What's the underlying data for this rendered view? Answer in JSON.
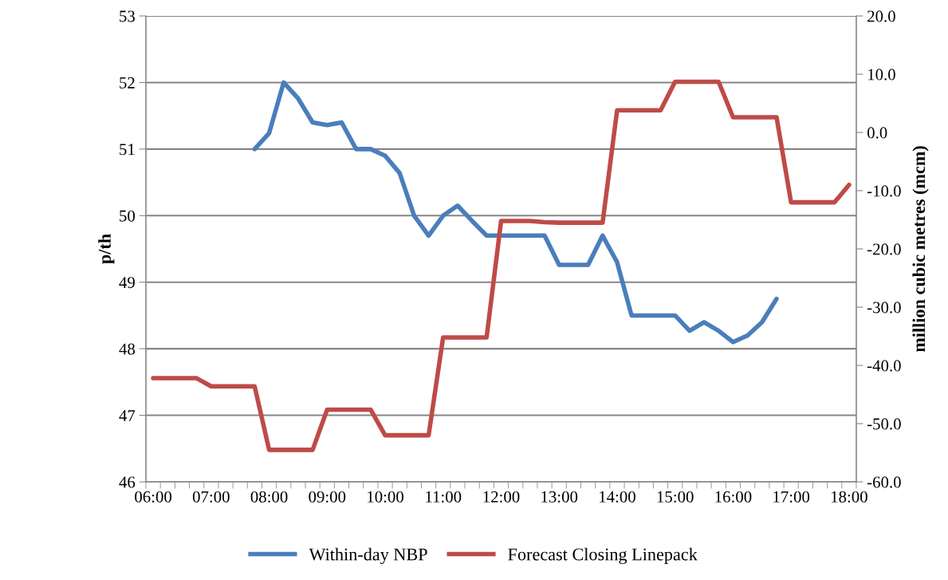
{
  "chart_data": {
    "type": "line",
    "categories": [
      "06:00",
      null,
      null,
      null,
      "07:00",
      null,
      null,
      null,
      "08:00",
      null,
      null,
      null,
      "09:00",
      null,
      null,
      null,
      "10:00",
      null,
      null,
      null,
      "11:00",
      null,
      null,
      null,
      "12:00",
      null,
      null,
      null,
      "13:00",
      null,
      null,
      null,
      "14:00",
      null,
      null,
      null,
      "15:00",
      null,
      null,
      null,
      "16:00",
      null,
      null,
      null,
      "17:00",
      null,
      null,
      null,
      "18:00"
    ],
    "ylabel": "p/th",
    "y2label": "million cubic metres (mcm)",
    "ylim": [
      46,
      53
    ],
    "yticks": [
      46,
      47,
      48,
      49,
      50,
      51,
      52,
      53
    ],
    "y2lim": [
      -60,
      20
    ],
    "y2ticks": [
      {
        "value": -60,
        "label": "-60.0"
      },
      {
        "value": -50,
        "label": "-50.0"
      },
      {
        "value": -40,
        "label": "-40.0"
      },
      {
        "value": -30,
        "label": "-30.0"
      },
      {
        "value": -20,
        "label": "-20.0"
      },
      {
        "value": -10,
        "label": "-10.0"
      },
      {
        "value": 0,
        "label": "0.0"
      },
      {
        "value": 10,
        "label": "10.0"
      },
      {
        "value": 20,
        "label": "20.0"
      }
    ],
    "grid": "y",
    "legend": "bottom",
    "marker": "none",
    "line_style": "solid",
    "series": [
      {
        "name": "Within-day NBP",
        "color": "#4a7ebb",
        "values": [
          null,
          null,
          null,
          null,
          null,
          null,
          null,
          51.0,
          51.24,
          52.0,
          51.76,
          51.4,
          51.36,
          51.4,
          51.0,
          51.0,
          50.9,
          50.64,
          50.0,
          49.7,
          50.0,
          50.15,
          49.92,
          49.7,
          49.7,
          49.7,
          49.7,
          49.7,
          49.26,
          49.26,
          49.26,
          49.7,
          49.3,
          48.5,
          48.5,
          48.5,
          48.5,
          48.27,
          48.4,
          48.27,
          48.1,
          48.2,
          48.4,
          48.75,
          null,
          null,
          null,
          null,
          null
        ]
      },
      {
        "name": "Forecast Closing Linepack",
        "color": "#be4b48",
        "axis": "y2",
        "values": [
          -42.2,
          -42.2,
          -42.2,
          -42.2,
          -43.6,
          -43.6,
          -43.6,
          -43.6,
          -54.5,
          -54.5,
          -54.5,
          -54.5,
          -47.6,
          -47.6,
          -47.6,
          -47.6,
          -52.0,
          -52.0,
          -52.0,
          -52.0,
          -35.2,
          -35.2,
          -35.2,
          -35.2,
          -15.2,
          -15.2,
          -15.2,
          -15.4,
          -15.5,
          -15.5,
          -15.5,
          -15.5,
          3.8,
          3.8,
          3.8,
          3.8,
          8.7,
          8.7,
          8.7,
          8.7,
          2.6,
          2.6,
          2.6,
          2.6,
          -12.0,
          -12.0,
          -12.0,
          -12.0,
          -9.0
        ]
      }
    ]
  }
}
